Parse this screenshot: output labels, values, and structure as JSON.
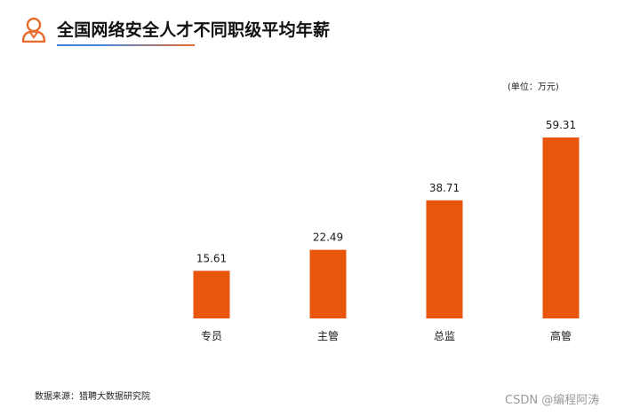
{
  "header": {
    "title": "全国网络安全人才不同职级平均年薪",
    "icon": "person-icon"
  },
  "unit_note": "(单位：万元)",
  "source_note": "数据来源：猎聘大数据研究院",
  "watermark": "CSDN @编程阿涛",
  "colors": {
    "bar": "#E8550C",
    "accent": "#E86A2B",
    "underline_start": "#3F7FDC"
  },
  "chart_data": {
    "type": "bar",
    "title": "全国网络安全人才不同职级平均年薪",
    "categories": [
      "专员",
      "主管",
      "总监",
      "高管"
    ],
    "values": [
      15.61,
      22.49,
      38.71,
      59.31
    ],
    "value_labels": [
      "15.61",
      "22.49",
      "38.71",
      "59.31"
    ],
    "xlabel": "",
    "ylabel": "",
    "ylim": [
      0,
      60
    ],
    "grid": false,
    "legend": "none"
  }
}
